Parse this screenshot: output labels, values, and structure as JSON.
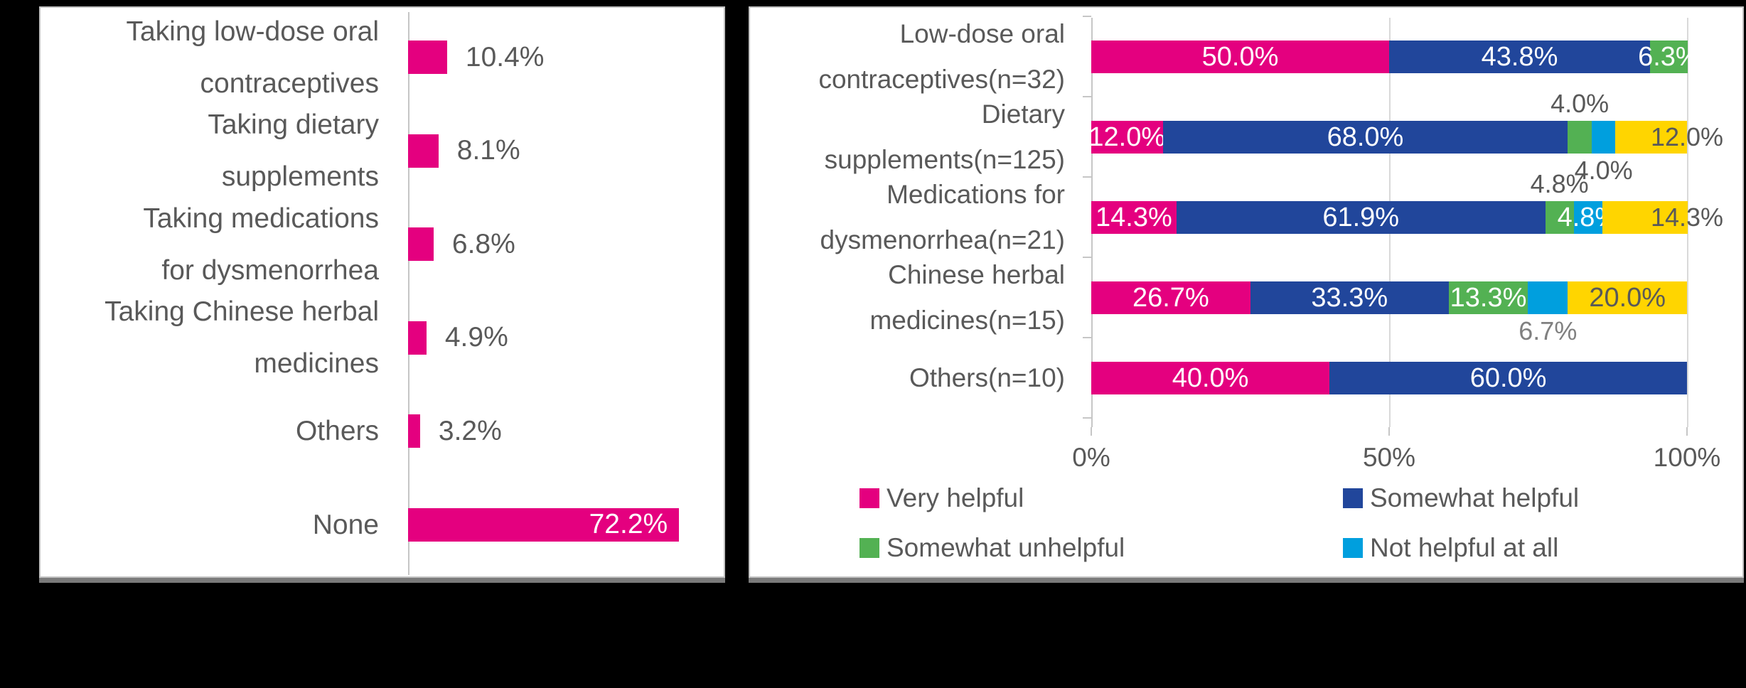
{
  "colors": {
    "very_helpful": "#E4007F",
    "somewhat_helpful": "#21469B",
    "somewhat_unhelpful": "#53B153",
    "not_helpful_at_all": "#009FDE",
    "fifth_segment": "#FFD500",
    "text": "#595959",
    "muted_text": "#808080",
    "inside_label": "#FFFFFF",
    "background": "#000000",
    "panel_bg": "#FFFFFF",
    "panel_border": "#C2C2C2",
    "panel_shadow": "#7A7A7A",
    "gridline": "#D9D9D9",
    "axis_line": "#C6C6C6"
  },
  "chart_data": [
    {
      "type": "bar",
      "orientation": "horizontal",
      "title": "",
      "categories": [
        "Taking low-dose oral contraceptives",
        "Taking dietary supplements",
        "Taking medications for dysmenorrhea",
        "Taking Chinese herbal medicines",
        "Others",
        "None"
      ],
      "category_lines": [
        [
          "Taking low-dose oral",
          "contraceptives"
        ],
        [
          "Taking dietary",
          "supplements"
        ],
        [
          "Taking medications",
          "for dysmenorrhea"
        ],
        [
          "Taking Chinese herbal",
          "medicines"
        ],
        [
          "Others"
        ],
        [
          "None"
        ]
      ],
      "values": [
        10.4,
        8.1,
        6.8,
        4.9,
        3.2,
        72.2
      ],
      "value_labels": [
        "10.4%",
        "8.1%",
        "6.8%",
        "4.9%",
        "3.2%",
        "72.2%"
      ],
      "value_label_placement": [
        "right",
        "right",
        "right",
        "right",
        "right",
        "inside"
      ],
      "bar_color": "#E4007F",
      "xlim": [
        0,
        80
      ],
      "grid": false,
      "legend_position": "none"
    },
    {
      "type": "bar",
      "stacked": true,
      "percent": true,
      "orientation": "horizontal",
      "title": "",
      "categories": [
        "Low-dose oral contraceptives(n=32)",
        "Dietary supplements(n=125)",
        "Medications for dysmenorrhea(n=21)",
        "Chinese herbal medicines(n=15)",
        "Others(n=10)"
      ],
      "category_lines": [
        [
          "Low-dose oral",
          "contraceptives(n=32)"
        ],
        [
          "Dietary",
          "supplements(n=125)"
        ],
        [
          "Medications for",
          "dysmenorrhea(n=21)"
        ],
        [
          "Chinese herbal",
          "medicines(n=15)"
        ],
        [
          "Others(n=10)"
        ]
      ],
      "series": [
        {
          "name": "Very helpful",
          "color": "#E4007F",
          "values": [
            50.0,
            12.0,
            14.3,
            26.7,
            40.0
          ]
        },
        {
          "name": "Somewhat helpful",
          "color": "#21469B",
          "values": [
            43.8,
            68.0,
            61.9,
            33.3,
            60.0
          ]
        },
        {
          "name": "Somewhat unhelpful",
          "color": "#53B153",
          "values": [
            6.3,
            4.0,
            4.8,
            13.3,
            null
          ]
        },
        {
          "name": "Not helpful at all",
          "color": "#009FDE",
          "values": [
            null,
            4.0,
            4.8,
            6.7,
            null
          ]
        },
        {
          "name": "",
          "color": "#FFD500",
          "values": [
            null,
            12.0,
            14.3,
            20.0,
            null
          ]
        }
      ],
      "segment_labels": [
        [
          {
            "text": "50.0%",
            "placement": "in"
          },
          {
            "text": "43.8%",
            "placement": "in"
          },
          {
            "text": "6.3%",
            "placement": "in"
          }
        ],
        [
          {
            "text": "12.0%",
            "placement": "in"
          },
          {
            "text": "68.0%",
            "placement": "in"
          },
          {
            "text": "4.0%",
            "placement": "above"
          },
          {
            "text": "4.0%",
            "placement": "below"
          },
          {
            "text": "12.0%",
            "placement": "end"
          }
        ],
        [
          {
            "text": "14.3%",
            "placement": "in"
          },
          {
            "text": "61.9%",
            "placement": "in"
          },
          {
            "text": "4.8%",
            "placement": "above"
          },
          {
            "text": "4.8%",
            "placement": "in"
          },
          {
            "text": "14.3%",
            "placement": "end"
          }
        ],
        [
          {
            "text": "26.7%",
            "placement": "in"
          },
          {
            "text": "33.3%",
            "placement": "in"
          },
          {
            "text": "13.3%",
            "placement": "in"
          },
          {
            "text": "6.7%",
            "placement": "below",
            "color": "#808080"
          },
          {
            "text": "20.0%",
            "placement": "in-dark"
          }
        ],
        [
          {
            "text": "40.0%",
            "placement": "in"
          },
          {
            "text": "60.0%",
            "placement": "in"
          }
        ]
      ],
      "x_ticks": [
        "0%",
        "50%",
        "100%"
      ],
      "xlim": [
        0,
        100
      ],
      "grid": true,
      "legend_position": "bottom",
      "legend": [
        {
          "label": "Very helpful",
          "color": "#E4007F"
        },
        {
          "label": "Somewhat helpful",
          "color": "#21469B"
        },
        {
          "label": "Somewhat unhelpful",
          "color": "#53B153"
        },
        {
          "label": "Not helpful at all",
          "color": "#009FDE"
        }
      ]
    }
  ]
}
